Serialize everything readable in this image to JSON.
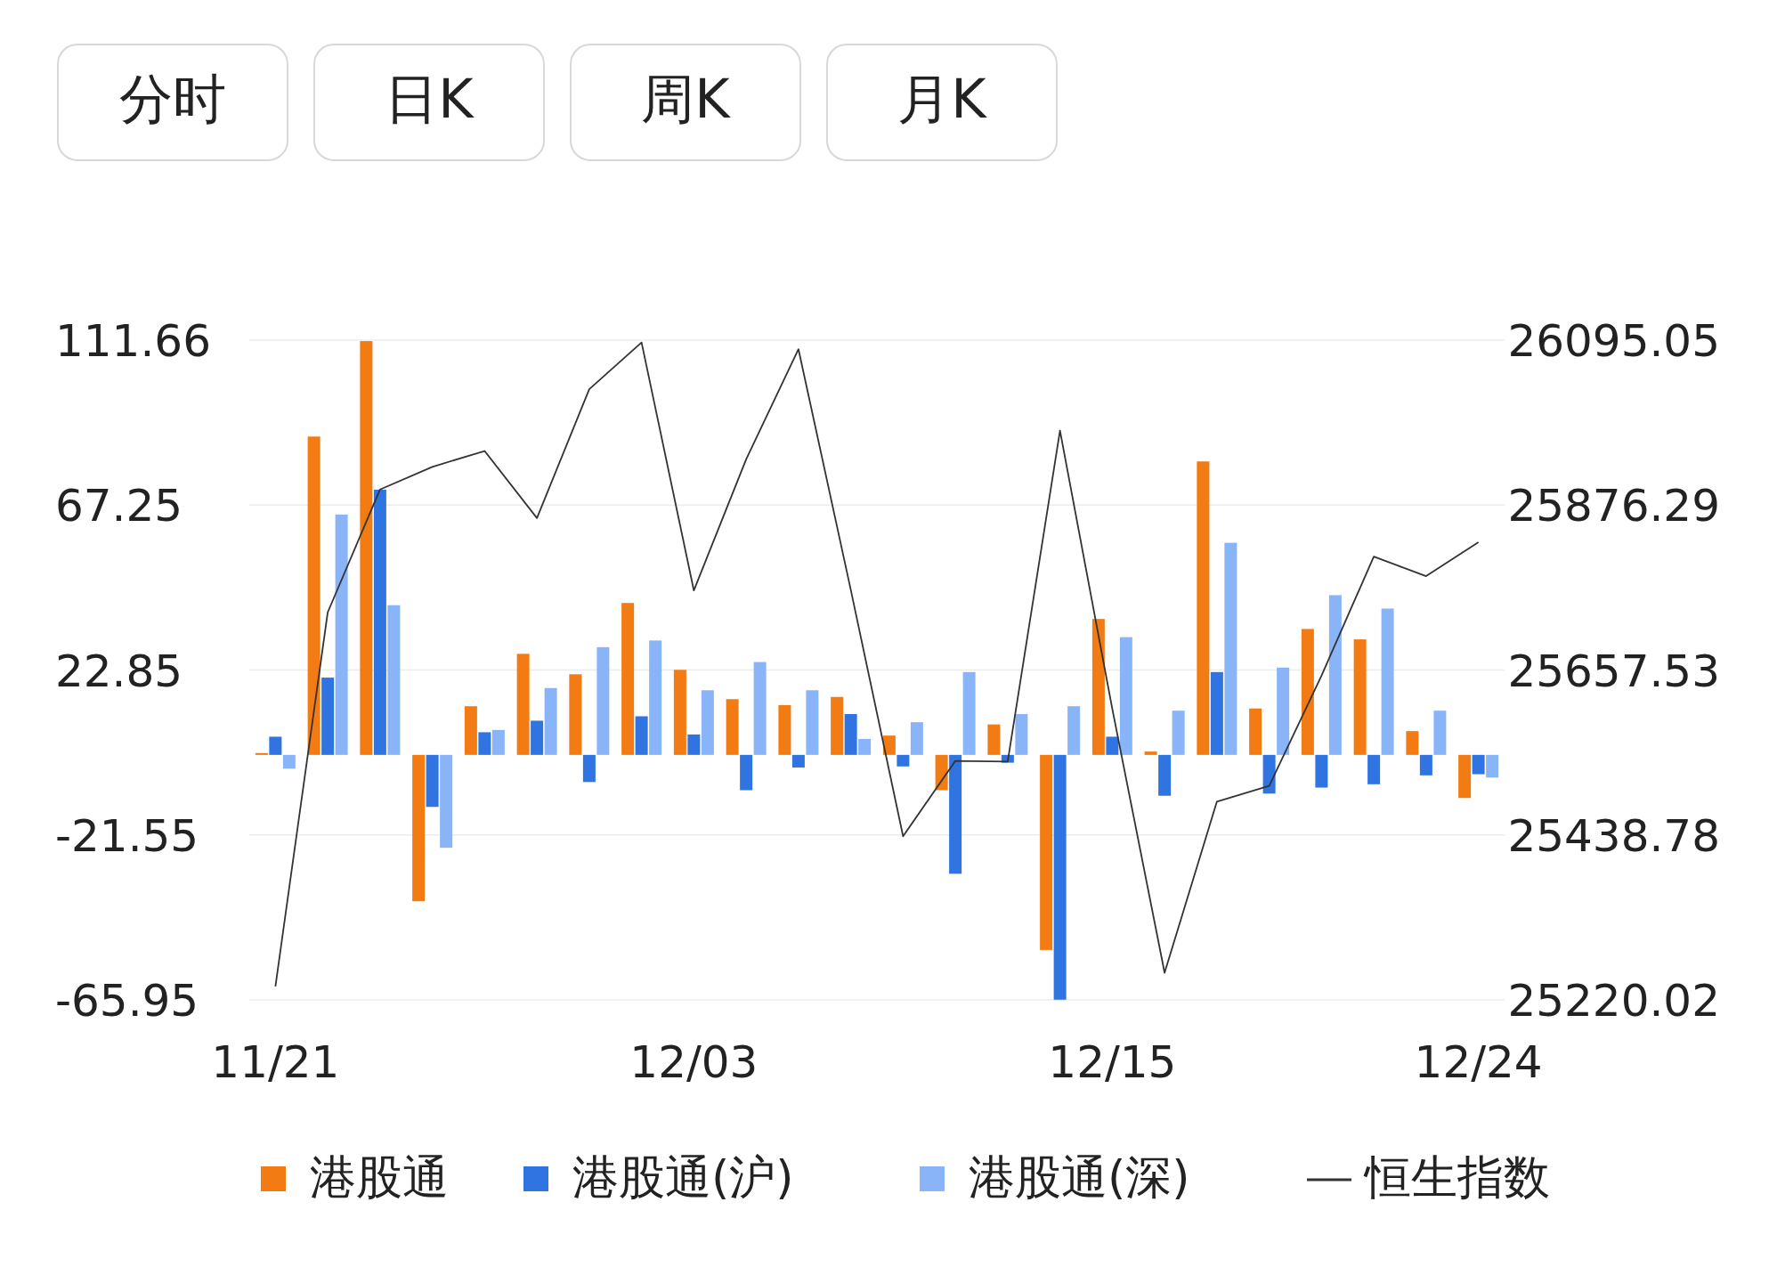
{
  "chart_data": {
    "type": "bar",
    "annotations": [
      "分时",
      "日K",
      "周K",
      "月K"
    ],
    "categories": [
      "11/21",
      null,
      null,
      null,
      null,
      null,
      null,
      null,
      "12/03",
      null,
      null,
      null,
      null,
      null,
      null,
      null,
      "12/15",
      null,
      null,
      null,
      null,
      null,
      null,
      "12/24"
    ],
    "series": [
      {
        "name": "港股通",
        "color": "#f27b13",
        "values": [
          0.5,
          85.7,
          111.4,
          -39.4,
          13.1,
          27.2,
          21.7,
          40.9,
          22.9,
          15.0,
          13.4,
          15.6,
          5.2,
          -9.5,
          8.2,
          -52.5,
          36.6,
          0.9,
          79.0,
          12.5,
          33.9,
          31.1,
          6.4,
          -11.6
        ]
      },
      {
        "name": "港股通(沪)",
        "color": "#2f74e0",
        "values": [
          4.9,
          20.8,
          71.4,
          -14.0,
          6.1,
          9.2,
          -7.3,
          10.4,
          5.5,
          -9.5,
          -3.4,
          11.0,
          -3.1,
          -32.0,
          -2.1,
          -65.9,
          4.9,
          -11.0,
          22.3,
          -10.4,
          -8.8,
          -7.9,
          -5.5,
          -5.2
        ]
      },
      {
        "name": "港股通(深)",
        "color": "#8ab4f8",
        "values": [
          -3.7,
          64.7,
          40.3,
          -25.0,
          6.7,
          18.0,
          29.0,
          30.8,
          17.4,
          25.0,
          17.4,
          4.3,
          8.8,
          22.3,
          11.0,
          13.1,
          31.7,
          11.9,
          57.1,
          23.5,
          43.0,
          39.4,
          11.9,
          -6.1
        ]
      },
      {
        "name": "恒生指数",
        "type": "line",
        "axis": "y2",
        "color": "#333333",
        "values": [
          25238,
          25734,
          25897,
          25927,
          25948,
          25859,
          26030,
          26092,
          25763,
          25937,
          26083,
          25764,
          25437,
          25537,
          25536,
          25975,
          25606,
          25256,
          25483,
          25504,
          25650,
          25808,
          25782,
          25827
        ]
      }
    ],
    "ylim": [
      -65.95,
      111.66
    ],
    "yticks": [
      111.66,
      67.25,
      22.85,
      -21.55,
      -65.95
    ],
    "y2lim": [
      25220.02,
      26095.05
    ],
    "y2ticks": [
      26095.05,
      25876.29,
      25657.53,
      25438.78,
      25220.02
    ],
    "grid": "y",
    "legend": "bottom"
  }
}
